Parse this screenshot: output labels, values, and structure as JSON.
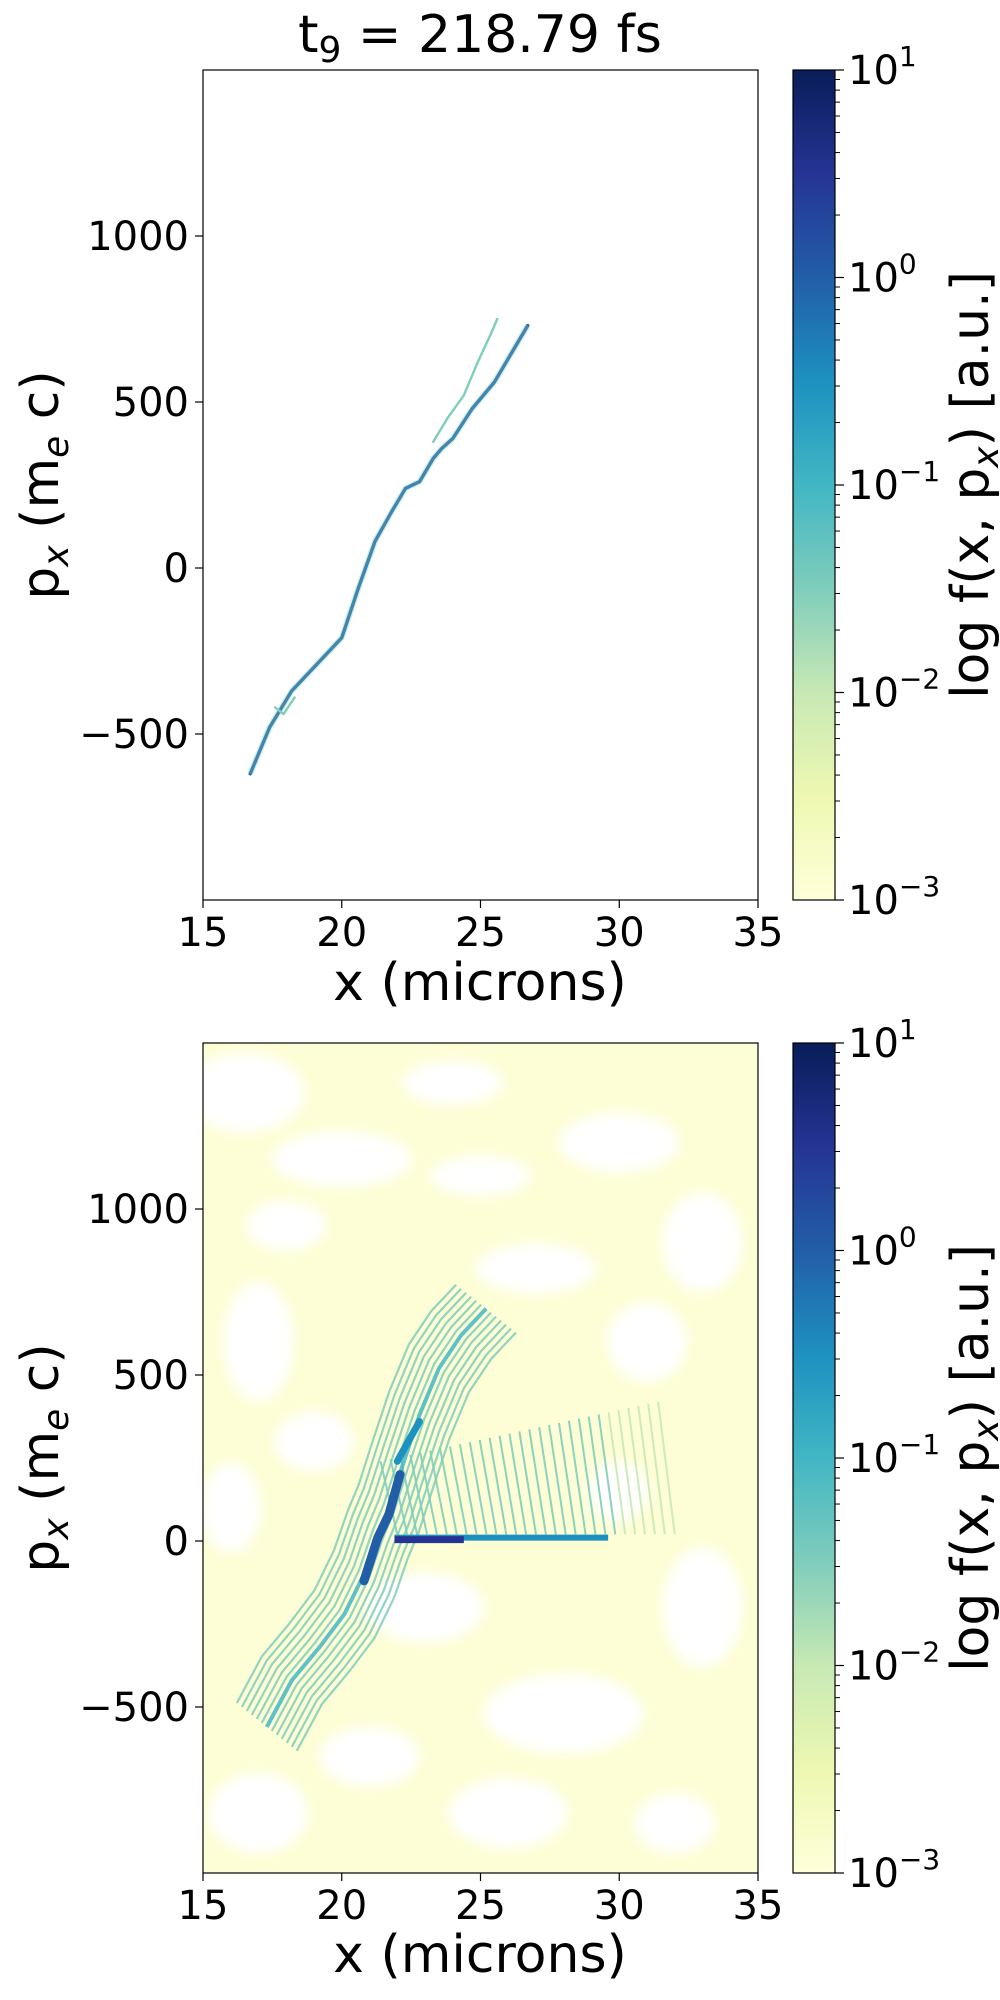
{
  "title_main": "t",
  "title_sub": "9",
  "title_rest": " = 218.79 fs",
  "colors": {
    "cmap": [
      "#ffffd9",
      "#edf8b1",
      "#c7e9b4",
      "#7fcdbb",
      "#41b6c4",
      "#1d91c0",
      "#225ea8",
      "#253494",
      "#081d58"
    ],
    "background_faint": "#fdfed5",
    "frame": "#000000"
  },
  "chart_data": [
    {
      "type": "heatmap",
      "panel": "top",
      "title": "t9 = 218.79 fs",
      "xlabel": "x (microns)",
      "ylabel_parts": [
        "p",
        "x",
        " (m",
        "e",
        " c)"
      ],
      "xlim": [
        15,
        35
      ],
      "ylim": [
        -1000,
        1500
      ],
      "xticks": [
        15,
        20,
        25,
        30,
        35
      ],
      "yticks": [
        -500,
        0,
        500,
        1000
      ],
      "ytick_labels": [
        "−500",
        "0",
        "500",
        "1000"
      ],
      "colorbar": {
        "scale": "log",
        "range": [
          0.001,
          10
        ],
        "ticks": [
          0.001,
          0.01,
          0.1,
          1,
          10
        ],
        "tick_mantissa": [
          "10",
          "10",
          "10",
          "10",
          "10"
        ],
        "tick_exponents": [
          "−3",
          "−2",
          "−1",
          "0",
          "1"
        ],
        "label_parts": [
          "log f(x, p",
          "x",
          ") [a.u.]"
        ]
      },
      "traces": [
        {
          "name": "main",
          "level": 1.0,
          "points": [
            [
              16.7,
              -620
            ],
            [
              17.4,
              -480
            ],
            [
              18.2,
              -370
            ],
            [
              19.1,
              -290
            ],
            [
              20.0,
              -210
            ],
            [
              20.6,
              -60
            ],
            [
              21.2,
              80
            ],
            [
              21.8,
              170
            ],
            [
              22.3,
              240
            ],
            [
              22.8,
              260
            ],
            [
              23.3,
              330
            ],
            [
              23.6,
              360
            ],
            [
              24.0,
              390
            ],
            [
              24.7,
              480
            ],
            [
              25.5,
              560
            ],
            [
              26.7,
              730
            ]
          ]
        },
        {
          "name": "upper branch",
          "level": 0.05,
          "points": [
            [
              23.3,
              380
            ],
            [
              23.8,
              450
            ],
            [
              24.4,
              520
            ],
            [
              24.9,
              620
            ],
            [
              25.4,
              710
            ],
            [
              25.6,
              750
            ]
          ]
        },
        {
          "name": "segment",
          "level": 0.03,
          "points": [
            [
              17.6,
              -420
            ],
            [
              17.9,
              -440
            ],
            [
              18.3,
              -390
            ]
          ]
        }
      ]
    },
    {
      "type": "heatmap",
      "panel": "bottom",
      "xlabel": "x (microns)",
      "ylabel_parts": [
        "p",
        "x",
        " (m",
        "e",
        " c)"
      ],
      "xlim": [
        15,
        35
      ],
      "ylim": [
        -1000,
        1500
      ],
      "xticks": [
        15,
        20,
        25,
        30,
        35
      ],
      "yticks": [
        -500,
        0,
        500,
        1000
      ],
      "ytick_labels": [
        "−500",
        "0",
        "500",
        "1000"
      ],
      "colorbar": {
        "scale": "log",
        "range": [
          0.001,
          10
        ],
        "ticks": [
          0.001,
          0.01,
          0.1,
          1,
          10
        ],
        "tick_mantissa": [
          "10",
          "10",
          "10",
          "10",
          "10"
        ],
        "tick_exponents": [
          "−3",
          "−2",
          "−1",
          "0",
          "1"
        ],
        "label_parts": [
          "log f(x, p",
          "x",
          ") [a.u.]"
        ]
      },
      "features": {
        "spine": [
          [
            17.3,
            -560
          ],
          [
            18.2,
            -420
          ],
          [
            19.2,
            -320
          ],
          [
            20.1,
            -220
          ],
          [
            20.8,
            -100
          ],
          [
            21.3,
            20
          ],
          [
            21.7,
            100
          ],
          [
            22.2,
            230
          ],
          [
            22.8,
            380
          ],
          [
            23.5,
            520
          ],
          [
            24.3,
            620
          ],
          [
            25.2,
            700
          ]
        ],
        "horizontal_band": {
          "x_start": 21.9,
          "x_end": 29.6,
          "y": 10
        },
        "fan_sheet": {
          "x_start": 22.0,
          "x_end": 32.0,
          "y_bottom": 20,
          "y_top_at_end": 420
        },
        "background_patches": [
          {
            "x": [
              15,
              20
            ],
            "y": [
              1200,
              1500
            ]
          },
          {
            "x": [
              26,
              35
            ],
            "y": [
              1000,
              1450
            ]
          },
          {
            "x": [
              15,
              19
            ],
            "y": [
              -1000,
              -500
            ]
          },
          {
            "x": [
              24,
              35
            ],
            "y": [
              -1000,
              -350
            ]
          },
          {
            "x": [
              29,
              35
            ],
            "y": [
              500,
              900
            ]
          }
        ]
      }
    }
  ]
}
